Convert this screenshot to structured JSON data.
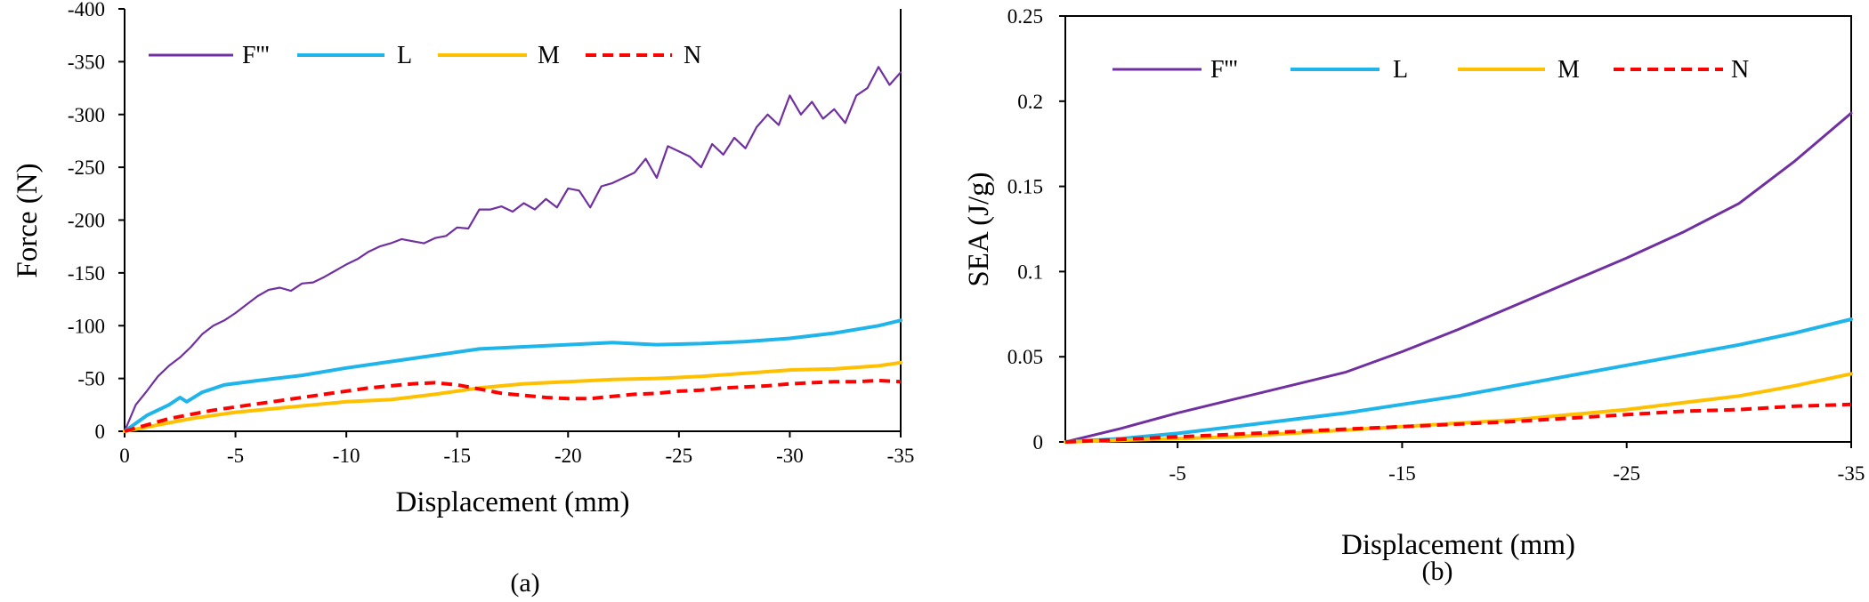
{
  "colors": {
    "Fppp": "#7030a0",
    "L": "#1fb5ea",
    "M": "#ffc000",
    "N": "#ff0000"
  },
  "chart_data": [
    {
      "type": "line",
      "panel": "left",
      "caption": "(a)",
      "title": "",
      "xlabel": "Displacement (mm)",
      "ylabel": "Force (N)",
      "xlim": [
        0,
        -35
      ],
      "ylim": [
        0,
        -400
      ],
      "xticks": [
        0,
        -5,
        -10,
        -15,
        -20,
        -25,
        -30,
        -35
      ],
      "xtick_labels": [
        "0",
        "-5",
        "-10",
        "-15",
        "-20",
        "-25",
        "-30",
        "-35"
      ],
      "yticks": [
        0,
        -50,
        -100,
        -150,
        -200,
        -250,
        -300,
        -350,
        -400
      ],
      "ytick_labels": [
        "0",
        "-50",
        "-100",
        "-150",
        "-200",
        "-250",
        "-300",
        "-350",
        "-400"
      ],
      "legend_position": "top-left",
      "series": [
        {
          "name": "F'''",
          "color_key": "Fppp",
          "style": "solid",
          "width": 2.2,
          "x": [
            0,
            -0.5,
            -1,
            -1.5,
            -2,
            -2.5,
            -3,
            -3.5,
            -4,
            -4.5,
            -5,
            -5.5,
            -6,
            -6.5,
            -7,
            -7.5,
            -8,
            -8.5,
            -9,
            -9.5,
            -10,
            -10.5,
            -11,
            -11.5,
            -12,
            -12.5,
            -13,
            -13.5,
            -14,
            -14.5,
            -15,
            -15.5,
            -16,
            -16.5,
            -17,
            -17.5,
            -18,
            -18.5,
            -19,
            -19.5,
            -20,
            -20.5,
            -21,
            -21.5,
            -22,
            -22.5,
            -23,
            -23.5,
            -24,
            -24.5,
            -25,
            -25.5,
            -26,
            -26.5,
            -27,
            -27.5,
            -28,
            -28.5,
            -29,
            -29.5,
            -30,
            -30.5,
            -31,
            -31.5,
            -32,
            -32.5,
            -33,
            -33.5,
            -34,
            -34.5,
            -35
          ],
          "y": [
            0,
            -25,
            -38,
            -52,
            -62,
            -70,
            -80,
            -92,
            -100,
            -105,
            -112,
            -120,
            -128,
            -134,
            -136,
            -133,
            -140,
            -141,
            -146,
            -152,
            -158,
            -163,
            -170,
            -175,
            -178,
            -182,
            -180,
            -178,
            -183,
            -185,
            -193,
            -192,
            -210,
            -210,
            -213,
            -208,
            -216,
            -210,
            -220,
            -212,
            -230,
            -228,
            -212,
            -232,
            -235,
            -240,
            -245,
            -258,
            -240,
            -270,
            -265,
            -260,
            -250,
            -272,
            -262,
            -278,
            -268,
            -288,
            -300,
            -290,
            -318,
            -300,
            -312,
            -296,
            -305,
            -292,
            -318,
            -325,
            -345,
            -328,
            -340
          ]
        },
        {
          "name": "L",
          "color_key": "L",
          "style": "solid",
          "width": 4,
          "x": [
            0,
            -1,
            -2,
            -2.5,
            -2.8,
            -3.5,
            -4.5,
            -6,
            -8,
            -10,
            -12,
            -14,
            -16,
            -18,
            -20,
            -22,
            -24,
            -26,
            -28,
            -30,
            -32,
            -34,
            -35
          ],
          "y": [
            0,
            -15,
            -25,
            -32,
            -28,
            -37,
            -44,
            -48,
            -53,
            -60,
            -66,
            -72,
            -78,
            -80,
            -82,
            -84,
            -82,
            -83,
            -85,
            -88,
            -93,
            -100,
            -105
          ]
        },
        {
          "name": "M",
          "color_key": "M",
          "style": "solid",
          "width": 4,
          "x": [
            0,
            -1,
            -2,
            -3,
            -4,
            -5,
            -6,
            -7,
            -8,
            -9,
            -10,
            -12,
            -14,
            -16,
            -18,
            -20,
            -22,
            -24,
            -26,
            -28,
            -30,
            -32,
            -34,
            -35
          ],
          "y": [
            0,
            -4,
            -8,
            -12,
            -15,
            -18,
            -20,
            -22,
            -24,
            -26,
            -28,
            -30,
            -35,
            -41,
            -45,
            -47,
            -49,
            -50,
            -52,
            -55,
            -58,
            -59,
            -62,
            -65
          ]
        },
        {
          "name": "N",
          "color_key": "N",
          "style": "dashed",
          "width": 4,
          "x": [
            0,
            -1,
            -2,
            -3,
            -4,
            -5,
            -6,
            -7,
            -8,
            -9,
            -10,
            -11,
            -12,
            -13,
            -14,
            -15,
            -16,
            -17,
            -18,
            -19,
            -20,
            -21,
            -22,
            -23,
            -24,
            -25,
            -26,
            -27,
            -28,
            -29,
            -30,
            -31,
            -32,
            -33,
            -34,
            -35
          ],
          "y": [
            0,
            -6,
            -12,
            -16,
            -20,
            -23,
            -26,
            -29,
            -32,
            -35,
            -38,
            -41,
            -43,
            -45,
            -46,
            -44,
            -40,
            -36,
            -34,
            -32,
            -31,
            -31,
            -33,
            -35,
            -36,
            -38,
            -39,
            -41,
            -42,
            -43,
            -45,
            -46,
            -47,
            -47,
            -48,
            -47
          ]
        }
      ]
    },
    {
      "type": "line",
      "panel": "right",
      "caption": "(b)",
      "title": "",
      "xlabel": "Displacement (mm)",
      "ylabel": "SEA (J/g)",
      "xlim": [
        0,
        -35
      ],
      "ylim": [
        0,
        0.25
      ],
      "xticks": [
        -5,
        -15,
        -25,
        -35
      ],
      "xtick_labels": [
        "-5",
        "-15",
        "-25",
        "-35"
      ],
      "yticks": [
        0,
        0.05,
        0.1,
        0.15,
        0.2,
        0.25
      ],
      "ytick_labels": [
        "0",
        "0.05",
        "0.1",
        "0.15",
        "0.2",
        "0.25"
      ],
      "legend_position": "top",
      "series": [
        {
          "name": "F'''",
          "color_key": "Fppp",
          "style": "solid",
          "width": 3,
          "x": [
            0,
            -2.5,
            -5,
            -7.5,
            -10,
            -12.5,
            -15,
            -17.5,
            -20,
            -22.5,
            -25,
            -27.5,
            -30,
            -32.5,
            -35
          ],
          "y": [
            0,
            0.008,
            0.017,
            0.025,
            0.033,
            0.041,
            0.053,
            0.066,
            0.08,
            0.094,
            0.108,
            0.123,
            0.14,
            0.165,
            0.193
          ]
        },
        {
          "name": "L",
          "color_key": "L",
          "style": "solid",
          "width": 4,
          "x": [
            0,
            -2.5,
            -5,
            -7.5,
            -10,
            -12.5,
            -15,
            -17.5,
            -20,
            -22.5,
            -25,
            -27.5,
            -30,
            -32.5,
            -35
          ],
          "y": [
            0,
            0.002,
            0.005,
            0.009,
            0.013,
            0.017,
            0.022,
            0.027,
            0.033,
            0.039,
            0.045,
            0.051,
            0.057,
            0.064,
            0.072
          ]
        },
        {
          "name": "M",
          "color_key": "M",
          "style": "solid",
          "width": 4,
          "x": [
            0,
            -2.5,
            -5,
            -7.5,
            -10,
            -12.5,
            -15,
            -17.5,
            -20,
            -22.5,
            -25,
            -27.5,
            -30,
            -32.5,
            -35
          ],
          "y": [
            0,
            0.001,
            0.002,
            0.003,
            0.005,
            0.007,
            0.009,
            0.011,
            0.013,
            0.016,
            0.019,
            0.023,
            0.027,
            0.033,
            0.04
          ]
        },
        {
          "name": "N",
          "color_key": "N",
          "style": "dashed",
          "width": 4,
          "x": [
            0,
            -2.5,
            -5,
            -7.5,
            -10,
            -12.5,
            -15,
            -17.5,
            -20,
            -22.5,
            -25,
            -27.5,
            -30,
            -32.5,
            -35
          ],
          "y": [
            0,
            0.0015,
            0.003,
            0.0045,
            0.006,
            0.0075,
            0.009,
            0.0105,
            0.012,
            0.014,
            0.016,
            0.018,
            0.019,
            0.021,
            0.022
          ]
        }
      ]
    }
  ]
}
